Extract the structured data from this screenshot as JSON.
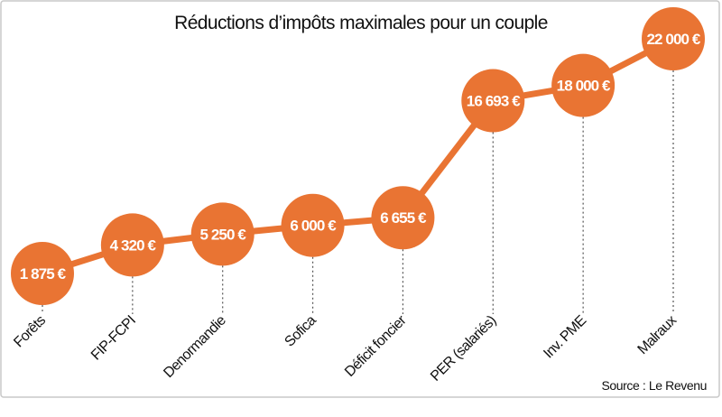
{
  "chart_data": {
    "type": "line",
    "title": "Réductions d’impôts maximales pour un couple",
    "categories": [
      "Forêts",
      "FIP-FCPI",
      "Denormandie",
      "Sofica",
      "Déficit foncier",
      "PER (salariés)",
      "Inv. PME",
      "Malraux"
    ],
    "values": [
      1875,
      4320,
      5250,
      6000,
      6655,
      16693,
      18000,
      22000
    ],
    "value_labels": [
      "1 875 €",
      "4 320 €",
      "5 250 €",
      "6 000 €",
      "6 655 €",
      "16 693 €",
      "18 000 €",
      "22 000 €"
    ],
    "unit": "€",
    "xlabel": "",
    "ylabel": "",
    "grid": false,
    "marker": "large circle with value label",
    "color": "#E97433",
    "source": "Source : Le Revenu"
  }
}
